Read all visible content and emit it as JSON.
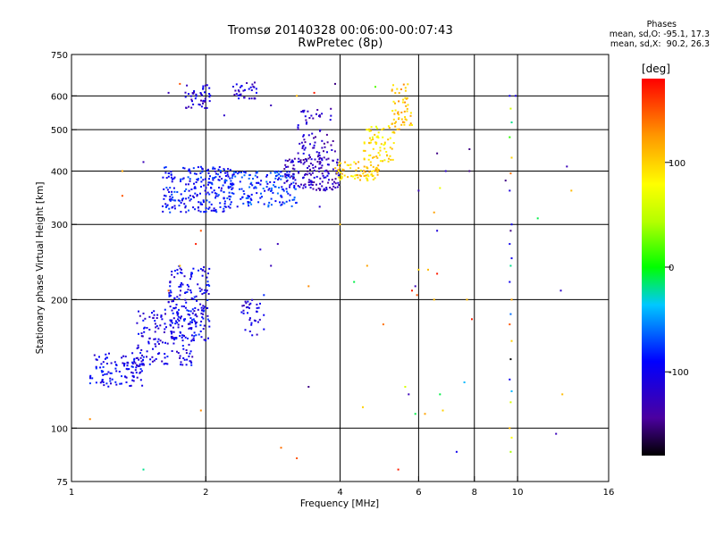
{
  "title_line1": "Tromsø 20140328 00:06:00-00:07:43",
  "title_line2": "RwPretec (8p)",
  "stats": {
    "header": "Phases",
    "line_o": "mean, sd,O: -95.1, 17.3",
    "line_x": "mean, sd,X:  90.2, 26.3"
  },
  "colorbar": {
    "unit": "[deg]",
    "ticks": [
      {
        "label": "100",
        "value": 100
      },
      {
        "label": "0",
        "value": 0
      },
      {
        "label": "-100",
        "value": -100
      }
    ],
    "range": [
      -180,
      180
    ]
  },
  "chart_data": {
    "type": "scatter",
    "xlabel": "Frequency [MHz]",
    "ylabel": "Stationary phase Virtual Height [km]",
    "x_scale": "log",
    "y_scale": "log",
    "xlim": [
      1,
      16
    ],
    "ylim": [
      75,
      750
    ],
    "x_ticks": [
      {
        "label": "1",
        "value": 1
      },
      {
        "label": "2",
        "value": 2
      },
      {
        "label": "4",
        "value": 4
      },
      {
        "label": "6",
        "value": 6
      },
      {
        "label": "8",
        "value": 8
      },
      {
        "label": "10",
        "value": 10
      },
      {
        "label": "16",
        "value": 16
      }
    ],
    "y_ticks": [
      {
        "label": "75",
        "value": 75
      },
      {
        "label": "100",
        "value": 100
      },
      {
        "label": "200",
        "value": 200
      },
      {
        "label": "300",
        "value": 300
      },
      {
        "label": "400",
        "value": 400
      },
      {
        "label": "500",
        "value": 500
      },
      {
        "label": "600",
        "value": 600
      },
      {
        "label": "750",
        "value": 750
      }
    ],
    "x_gridlines": [
      2,
      4,
      6,
      8,
      10
    ],
    "y_gridlines": [
      100,
      200,
      300,
      400,
      500,
      600
    ],
    "color_by": "phase [deg]",
    "clusters": [
      {
        "x": [
          1.1,
          1.45
        ],
        "y": [
          125,
          150
        ],
        "phase": -100,
        "count": 110
      },
      {
        "x": [
          1.4,
          1.9
        ],
        "y": [
          140,
          190
        ],
        "phase": -105,
        "count": 160
      },
      {
        "x": [
          1.65,
          2.05
        ],
        "y": [
          160,
          240
        ],
        "phase": -100,
        "count": 170
      },
      {
        "x": [
          2.4,
          2.7
        ],
        "y": [
          165,
          200
        ],
        "phase": -110,
        "count": 35
      },
      {
        "x": [
          1.6,
          2.3
        ],
        "y": [
          320,
          410
        ],
        "phase": -90,
        "count": 230
      },
      {
        "x": [
          2.2,
          3.2
        ],
        "y": [
          330,
          400
        ],
        "phase": -80,
        "count": 170
      },
      {
        "x": [
          3.0,
          4.0
        ],
        "y": [
          360,
          430
        ],
        "phase": -125,
        "count": 150
      },
      {
        "x": [
          3.2,
          3.9
        ],
        "y": [
          420,
          560
        ],
        "phase": -125,
        "count": 70
      },
      {
        "x": [
          3.9,
          4.9
        ],
        "y": [
          380,
          420
        ],
        "phase": 100,
        "count": 80
      },
      {
        "x": [
          4.5,
          5.3
        ],
        "y": [
          420,
          510
        ],
        "phase": 90,
        "count": 70
      },
      {
        "x": [
          5.2,
          5.8
        ],
        "y": [
          500,
          640
        ],
        "phase": 110,
        "count": 55
      },
      {
        "x": [
          1.8,
          2.05
        ],
        "y": [
          560,
          640
        ],
        "phase": -115,
        "count": 45
      },
      {
        "x": [
          2.3,
          2.6
        ],
        "y": [
          590,
          650
        ],
        "phase": -115,
        "count": 35
      }
    ],
    "points": [
      {
        "x": 9.6,
        "y": 600,
        "phase": -100
      },
      {
        "x": 9.65,
        "y": 560,
        "phase": 60
      },
      {
        "x": 9.7,
        "y": 520,
        "phase": -20
      },
      {
        "x": 9.6,
        "y": 480,
        "phase": 10
      },
      {
        "x": 9.7,
        "y": 430,
        "phase": 100
      },
      {
        "x": 9.65,
        "y": 395,
        "phase": 140
      },
      {
        "x": 9.6,
        "y": 360,
        "phase": -110
      },
      {
        "x": 9.7,
        "y": 300,
        "phase": -100
      },
      {
        "x": 9.65,
        "y": 290,
        "phase": -150
      },
      {
        "x": 9.6,
        "y": 270,
        "phase": -100
      },
      {
        "x": 9.7,
        "y": 250,
        "phase": -100
      },
      {
        "x": 9.65,
        "y": 240,
        "phase": -20
      },
      {
        "x": 9.6,
        "y": 220,
        "phase": -100
      },
      {
        "x": 9.7,
        "y": 200,
        "phase": 120
      },
      {
        "x": 9.65,
        "y": 185,
        "phase": -60
      },
      {
        "x": 9.6,
        "y": 175,
        "phase": 150
      },
      {
        "x": 9.7,
        "y": 160,
        "phase": 100
      },
      {
        "x": 9.65,
        "y": 145,
        "phase": -180
      },
      {
        "x": 9.6,
        "y": 130,
        "phase": -100
      },
      {
        "x": 9.7,
        "y": 122,
        "phase": -40
      },
      {
        "x": 9.65,
        "y": 115,
        "phase": 60
      },
      {
        "x": 9.6,
        "y": 100,
        "phase": 110
      },
      {
        "x": 9.7,
        "y": 95,
        "phase": 80
      },
      {
        "x": 9.65,
        "y": 88,
        "phase": 40
      },
      {
        "x": 9.9,
        "y": 600,
        "phase": -110
      },
      {
        "x": 7.8,
        "y": 450,
        "phase": -150
      },
      {
        "x": 7.8,
        "y": 400,
        "phase": -150
      },
      {
        "x": 9.4,
        "y": 380,
        "phase": -150
      },
      {
        "x": 12.9,
        "y": 410,
        "phase": -130
      },
      {
        "x": 13.2,
        "y": 360,
        "phase": 110
      },
      {
        "x": 11.1,
        "y": 310,
        "phase": -10
      },
      {
        "x": 12.5,
        "y": 210,
        "phase": -120
      },
      {
        "x": 12.6,
        "y": 120,
        "phase": 110
      },
      {
        "x": 12.2,
        "y": 97,
        "phase": -130
      },
      {
        "x": 7.7,
        "y": 200,
        "phase": 110
      },
      {
        "x": 7.9,
        "y": 180,
        "phase": 170
      },
      {
        "x": 7.3,
        "y": 88,
        "phase": -100
      },
      {
        "x": 7.6,
        "y": 128,
        "phase": -40
      },
      {
        "x": 6.9,
        "y": 400,
        "phase": -120
      },
      {
        "x": 6.6,
        "y": 440,
        "phase": -150
      },
      {
        "x": 6.7,
        "y": 365,
        "phase": 70
      },
      {
        "x": 6.5,
        "y": 320,
        "phase": 120
      },
      {
        "x": 6.6,
        "y": 290,
        "phase": -110
      },
      {
        "x": 6.6,
        "y": 230,
        "phase": 170
      },
      {
        "x": 6.5,
        "y": 200,
        "phase": 110
      },
      {
        "x": 6.7,
        "y": 120,
        "phase": -10
      },
      {
        "x": 6.8,
        "y": 110,
        "phase": 100
      },
      {
        "x": 6.2,
        "y": 108,
        "phase": 120
      },
      {
        "x": 6.0,
        "y": 360,
        "phase": -130
      },
      {
        "x": 6.0,
        "y": 235,
        "phase": 100
      },
      {
        "x": 5.9,
        "y": 215,
        "phase": -130
      },
      {
        "x": 5.8,
        "y": 210,
        "phase": 170
      },
      {
        "x": 5.95,
        "y": 205,
        "phase": 150
      },
      {
        "x": 6.3,
        "y": 235,
        "phase": 110
      },
      {
        "x": 5.7,
        "y": 120,
        "phase": -130
      },
      {
        "x": 5.9,
        "y": 108,
        "phase": -10
      },
      {
        "x": 5.4,
        "y": 80,
        "phase": 170
      },
      {
        "x": 4.5,
        "y": 112,
        "phase": 100
      },
      {
        "x": 4.6,
        "y": 240,
        "phase": 120
      },
      {
        "x": 4.3,
        "y": 220,
        "phase": -10
      },
      {
        "x": 5.0,
        "y": 175,
        "phase": 140
      },
      {
        "x": 5.6,
        "y": 125,
        "phase": 60
      },
      {
        "x": 4.8,
        "y": 630,
        "phase": 20
      },
      {
        "x": 3.9,
        "y": 640,
        "phase": -150
      },
      {
        "x": 3.5,
        "y": 610,
        "phase": 170
      },
      {
        "x": 3.2,
        "y": 600,
        "phase": 110
      },
      {
        "x": 2.8,
        "y": 570,
        "phase": -130
      },
      {
        "x": 2.2,
        "y": 540,
        "phase": -120
      },
      {
        "x": 4.0,
        "y": 300,
        "phase": 110
      },
      {
        "x": 3.6,
        "y": 330,
        "phase": -120
      },
      {
        "x": 3.4,
        "y": 215,
        "phase": 130
      },
      {
        "x": 3.4,
        "y": 125,
        "phase": -150
      },
      {
        "x": 3.2,
        "y": 85,
        "phase": 150
      },
      {
        "x": 2.95,
        "y": 90,
        "phase": 140
      },
      {
        "x": 2.7,
        "y": 205,
        "phase": -80
      },
      {
        "x": 2.8,
        "y": 240,
        "phase": -130
      },
      {
        "x": 2.65,
        "y": 262,
        "phase": -120
      },
      {
        "x": 2.9,
        "y": 270,
        "phase": -130
      },
      {
        "x": 1.95,
        "y": 110,
        "phase": 130
      },
      {
        "x": 1.95,
        "y": 290,
        "phase": 150
      },
      {
        "x": 1.9,
        "y": 270,
        "phase": 170
      },
      {
        "x": 1.75,
        "y": 640,
        "phase": 150
      },
      {
        "x": 1.65,
        "y": 610,
        "phase": -130
      },
      {
        "x": 1.45,
        "y": 420,
        "phase": -130
      },
      {
        "x": 1.3,
        "y": 400,
        "phase": 120
      },
      {
        "x": 1.3,
        "y": 350,
        "phase": 150
      },
      {
        "x": 1.1,
        "y": 105,
        "phase": 130
      },
      {
        "x": 1.45,
        "y": 80,
        "phase": -20
      },
      {
        "x": 1.65,
        "y": 210,
        "phase": 140
      },
      {
        "x": 1.75,
        "y": 240,
        "phase": 110
      }
    ]
  }
}
